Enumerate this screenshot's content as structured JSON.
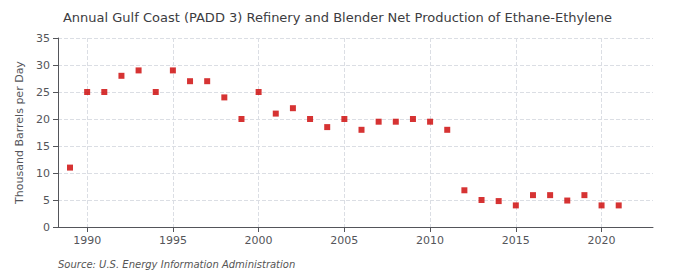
{
  "chart_data": {
    "type": "scatter",
    "title": "Annual Gulf Coast (PADD 3) Refinery and Blender Net Production of Ethane-Ethylene",
    "ylabel": "Thousand Barrels per Day",
    "source": "Source: U.S. Energy Information Administration",
    "x": [
      1989,
      1990,
      1991,
      1992,
      1993,
      1994,
      1995,
      1996,
      1997,
      1998,
      1999,
      2000,
      2001,
      2002,
      2003,
      2004,
      2005,
      2006,
      2007,
      2008,
      2009,
      2010,
      2011,
      2012,
      2013,
      2014,
      2015,
      2016,
      2017,
      2018,
      2019,
      2020,
      2021
    ],
    "values": [
      11.0,
      25.0,
      25.0,
      28.0,
      29.0,
      25.0,
      29.0,
      27.0,
      27.0,
      24.0,
      20.0,
      25.0,
      21.0,
      22.0,
      20.0,
      18.5,
      20.0,
      18.0,
      19.5,
      19.5,
      20.0,
      19.5,
      18.0,
      6.8,
      5.0,
      4.8,
      4.0,
      5.9,
      5.9,
      4.9,
      5.9,
      4.0,
      4.0
    ],
    "color": "#cc0000",
    "marker": "square",
    "xlim": [
      1988.3,
      2023.0
    ],
    "xticks": [
      1990,
      1995,
      2000,
      2005,
      2010,
      2015,
      2020
    ],
    "ylim": [
      0,
      35
    ],
    "yticks": [
      0,
      5,
      10,
      15,
      20,
      25,
      30,
      35
    ],
    "grid": true
  }
}
